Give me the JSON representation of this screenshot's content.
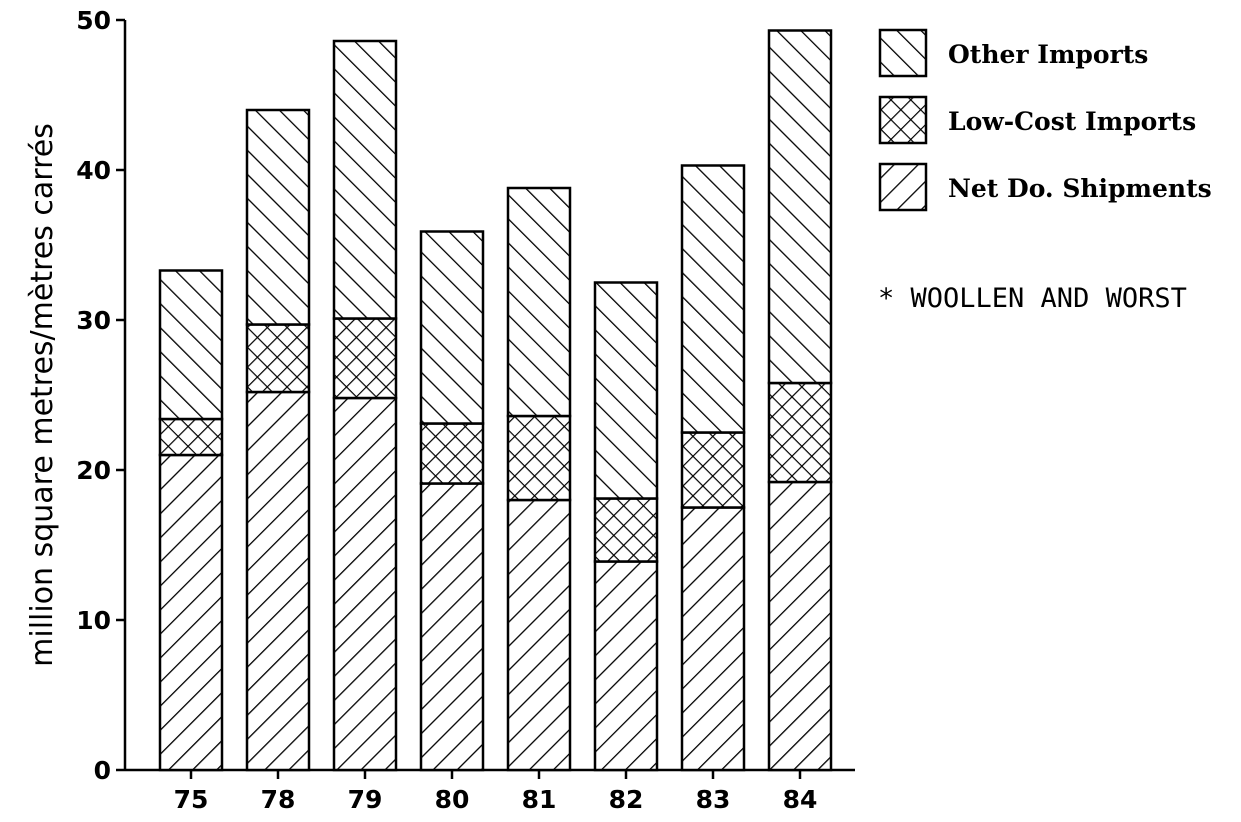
{
  "chart_data": {
    "type": "bar",
    "stacked": true,
    "categories": [
      "75",
      "78",
      "79",
      "80",
      "81",
      "82",
      "83",
      "84"
    ],
    "series": [
      {
        "name": "Net Do. Shipments",
        "pattern": "hatch-backslash",
        "values": [
          21.0,
          25.2,
          24.8,
          19.1,
          18.0,
          13.9,
          17.5,
          19.2
        ]
      },
      {
        "name": "Low-Cost Imports",
        "pattern": "crosshatch",
        "values": [
          2.4,
          4.5,
          5.3,
          4.0,
          5.6,
          4.2,
          5.0,
          6.6
        ]
      },
      {
        "name": "Other Imports",
        "pattern": "hatch-slash",
        "values": [
          9.9,
          14.3,
          18.5,
          12.8,
          15.2,
          14.4,
          17.8,
          23.5
        ]
      }
    ],
    "title": "",
    "xlabel": "",
    "ylabel": "million square metres/mètres carrés",
    "ylim": [
      0,
      50
    ],
    "yticks": [
      "0",
      "10",
      "20",
      "30",
      "40",
      "50"
    ],
    "grid": false,
    "legend_position": "top-right",
    "legend_order": [
      "Other Imports",
      "Low-Cost Imports",
      "Net Do. Shipments"
    ],
    "annotation": "* WOOLLEN AND WORST",
    "colors": {
      "ink": "#000000",
      "background": "#ffffff"
    }
  }
}
